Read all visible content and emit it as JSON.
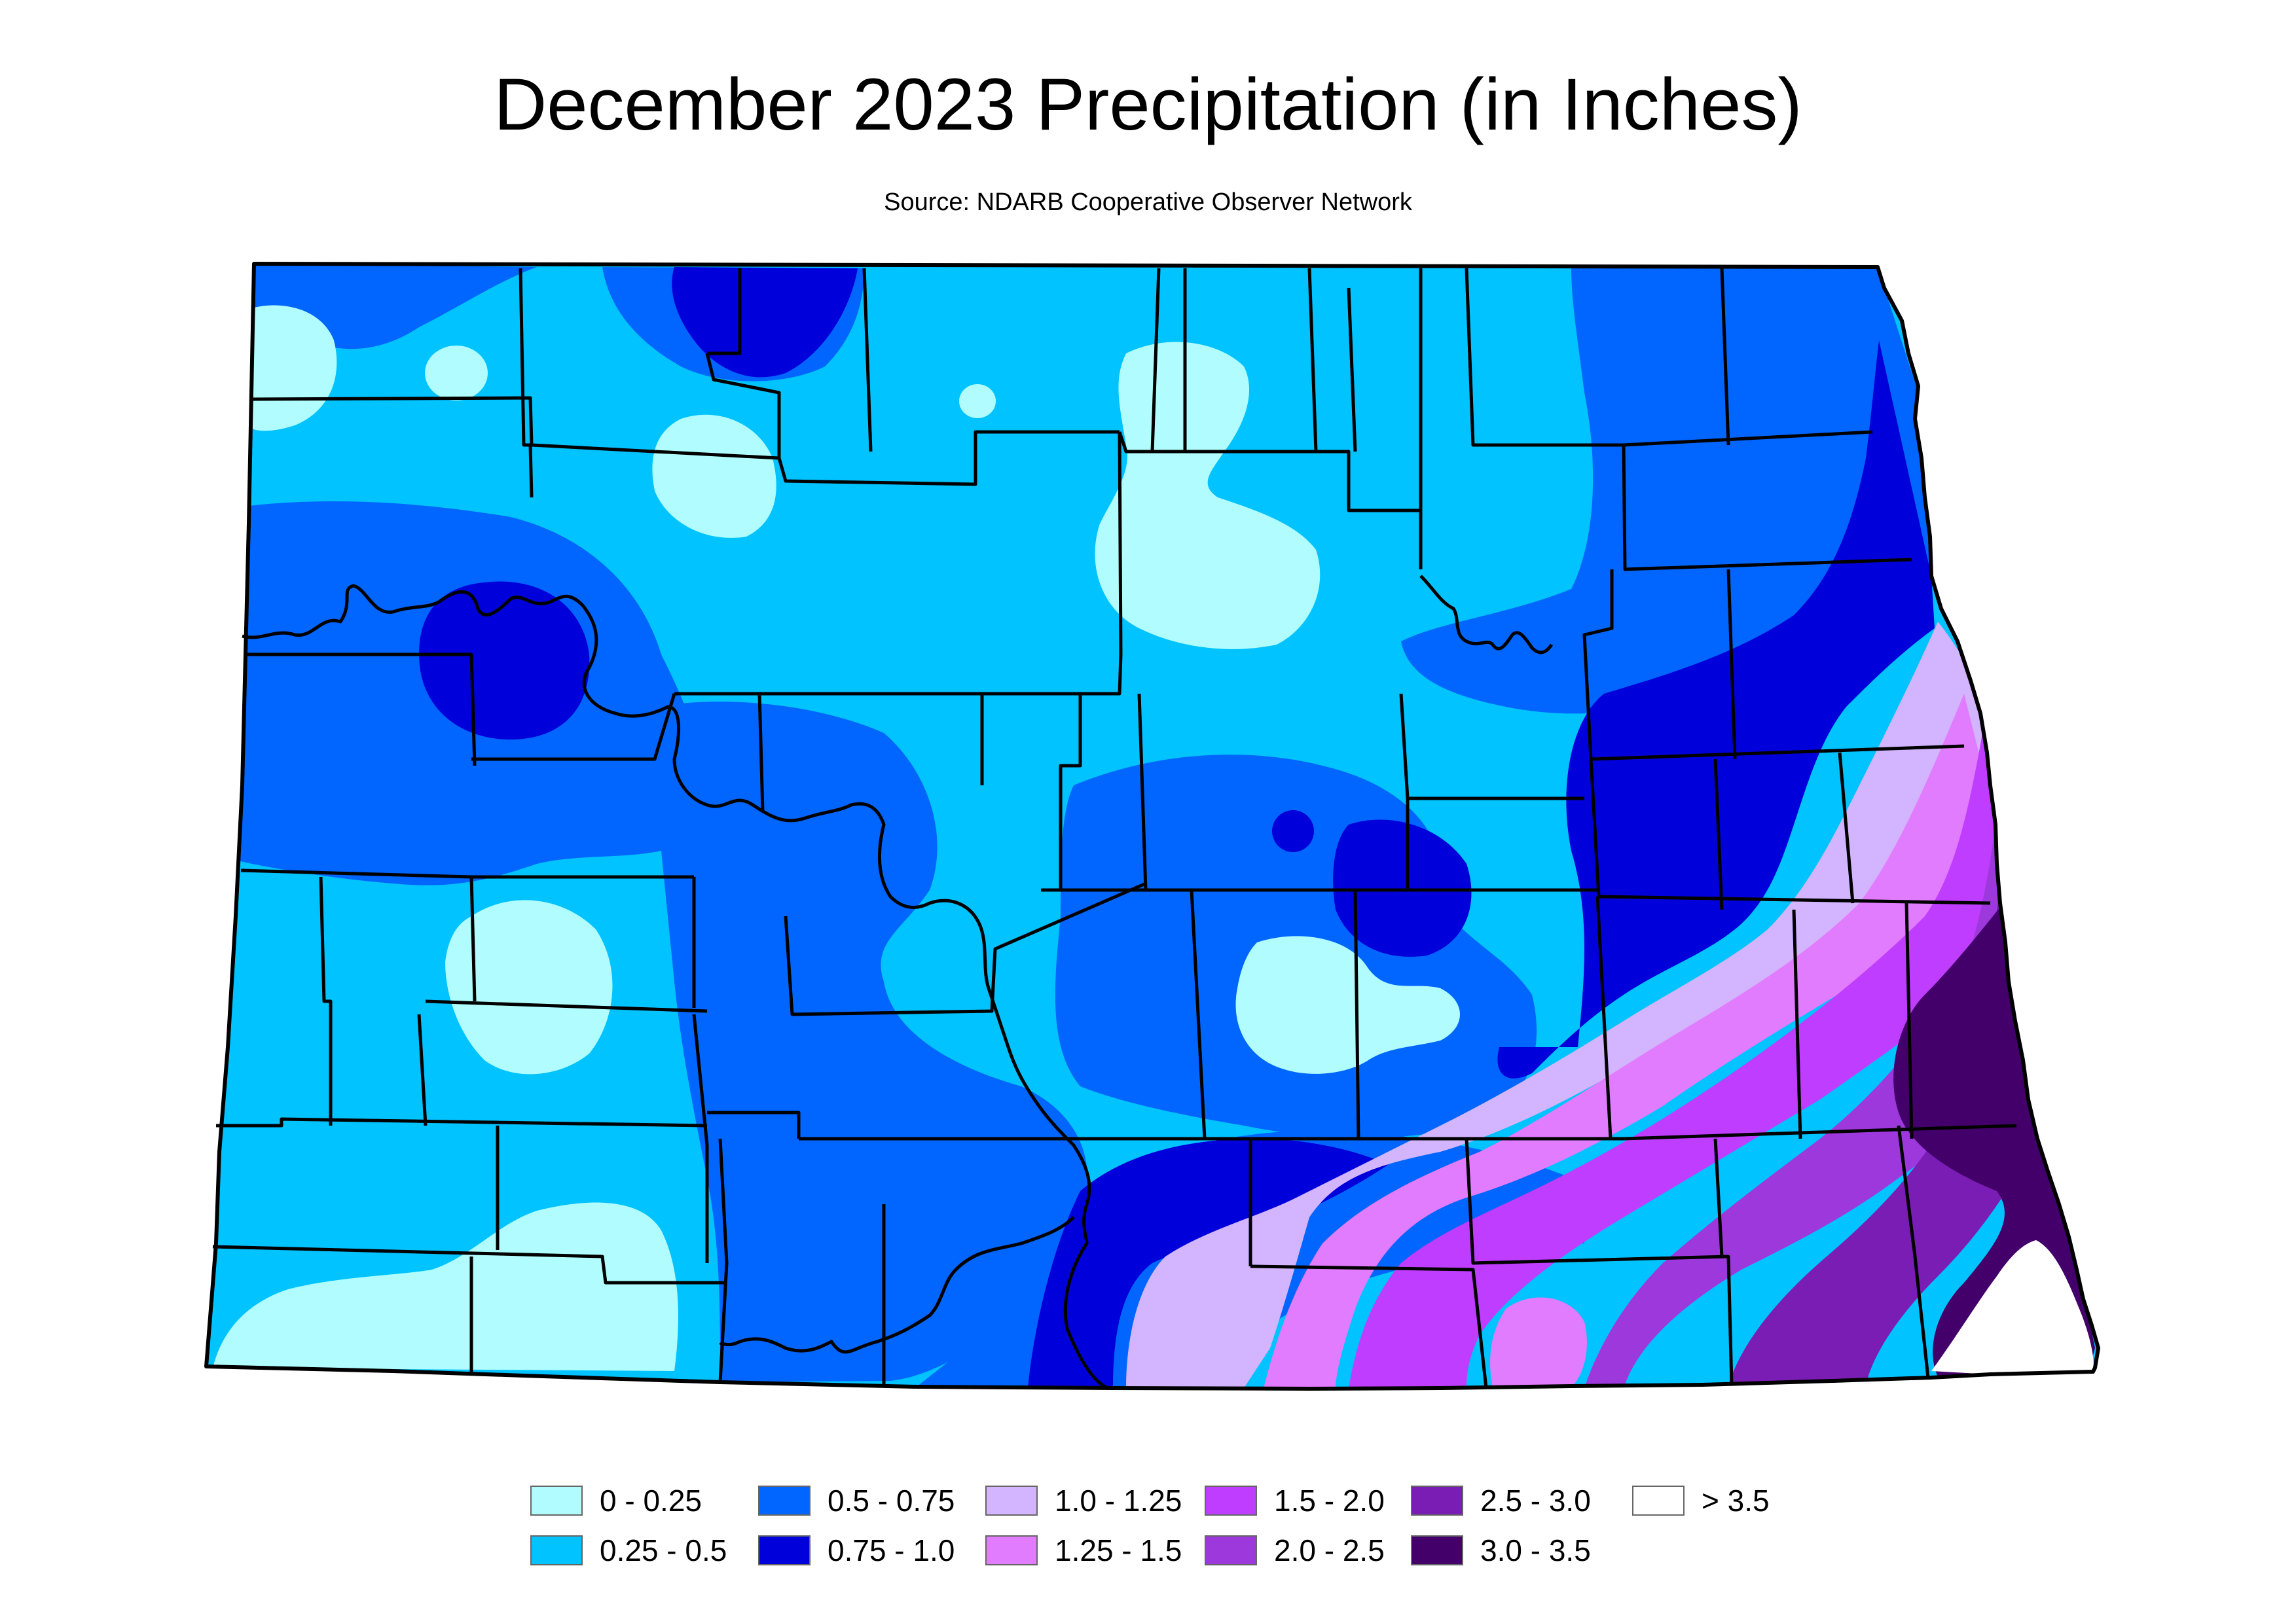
{
  "title": "December 2023 Precipitation (in Inches)",
  "subtitle": "Source: NDARB Cooperative Observer Network",
  "legend": [
    {
      "label": "0 - 0.25",
      "color": "#b0fcfe"
    },
    {
      "label": "0.25 - 0.5",
      "color": "#00c3ff"
    },
    {
      "label": "0.5 - 0.75",
      "color": "#0066ff"
    },
    {
      "label": "0.75 - 1.0",
      "color": "#0000db"
    },
    {
      "label": "1.0 - 1.25",
      "color": "#d3b4ff"
    },
    {
      "label": "1.25 - 1.5",
      "color": "#e27cff"
    },
    {
      "label": "1.5 - 2.0",
      "color": "#bf3dff"
    },
    {
      "label": "2.0 - 2.5",
      "color": "#9d38dd"
    },
    {
      "label": "2.5 - 3.0",
      "color": "#7a1db5"
    },
    {
      "label": "3.0 - 3.5",
      "color": "#44006a"
    },
    {
      "label": "> 3.5",
      "color": "#ffffff"
    }
  ]
}
